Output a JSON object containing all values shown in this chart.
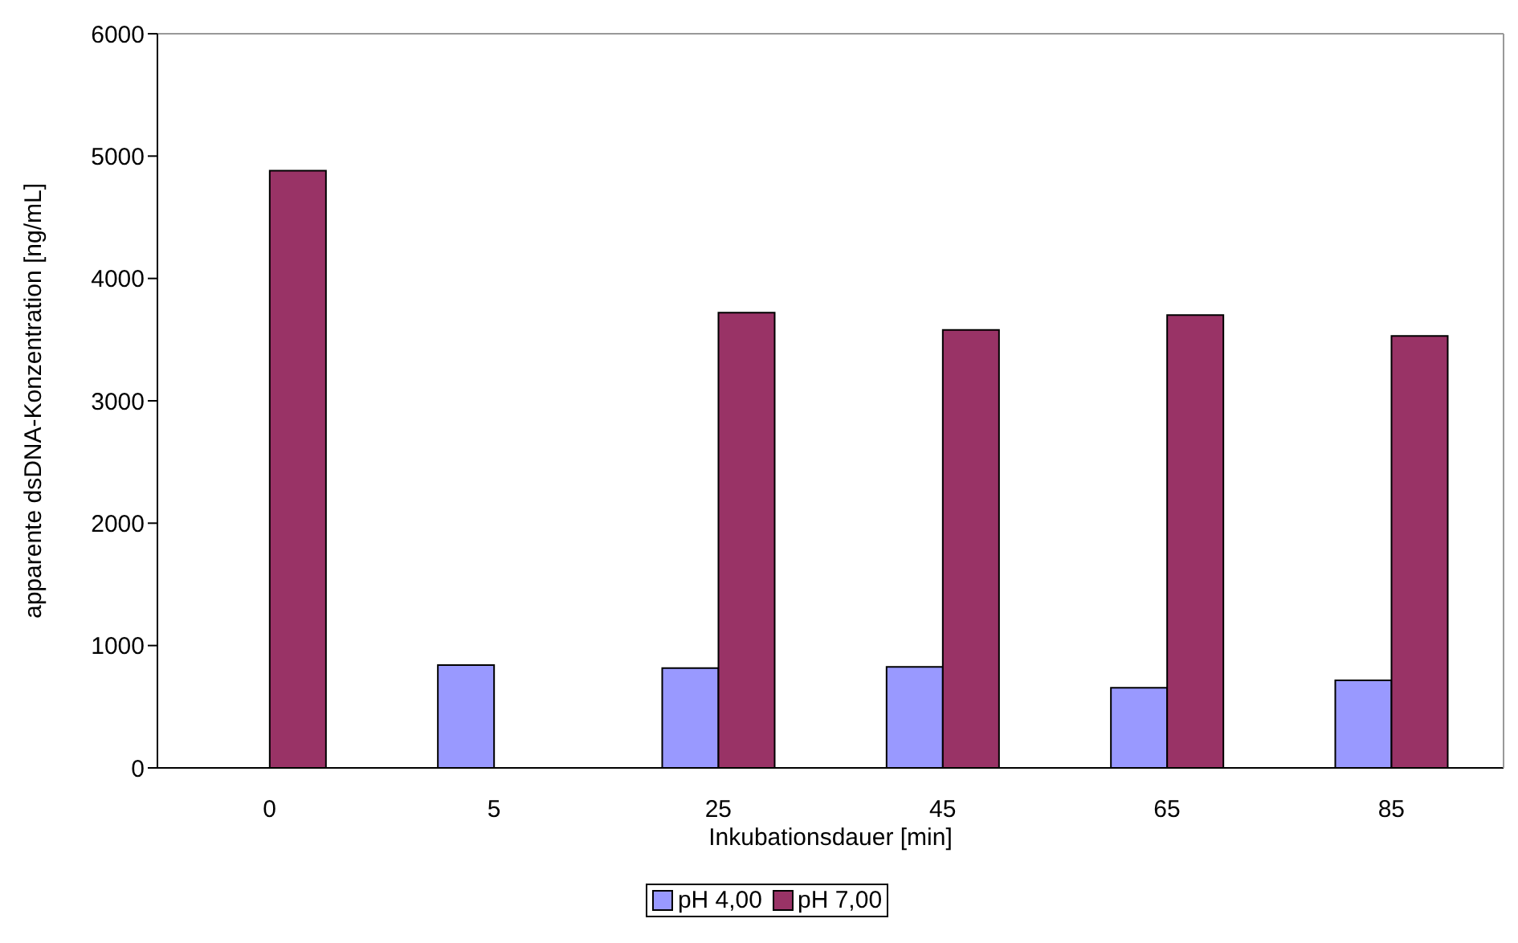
{
  "chart_data": {
    "type": "bar",
    "xlabel": "Inkubationsdauer [min]",
    "ylabel": "apparente dsDNA-Konzentration [ng/mL]",
    "categories": [
      "0",
      "5",
      "25",
      "45",
      "65",
      "85"
    ],
    "series": [
      {
        "name": "pH 4,00",
        "color": "#9999ff",
        "values": [
          null,
          840,
          815,
          825,
          655,
          715
        ]
      },
      {
        "name": "pH 7,00",
        "color": "#993366",
        "values": [
          4880,
          null,
          3720,
          3580,
          3700,
          3530
        ]
      }
    ],
    "ylim": [
      0,
      6000
    ],
    "yticks": [
      0,
      1000,
      2000,
      3000,
      4000,
      5000,
      6000
    ],
    "grid": false,
    "legend": "bottom"
  }
}
